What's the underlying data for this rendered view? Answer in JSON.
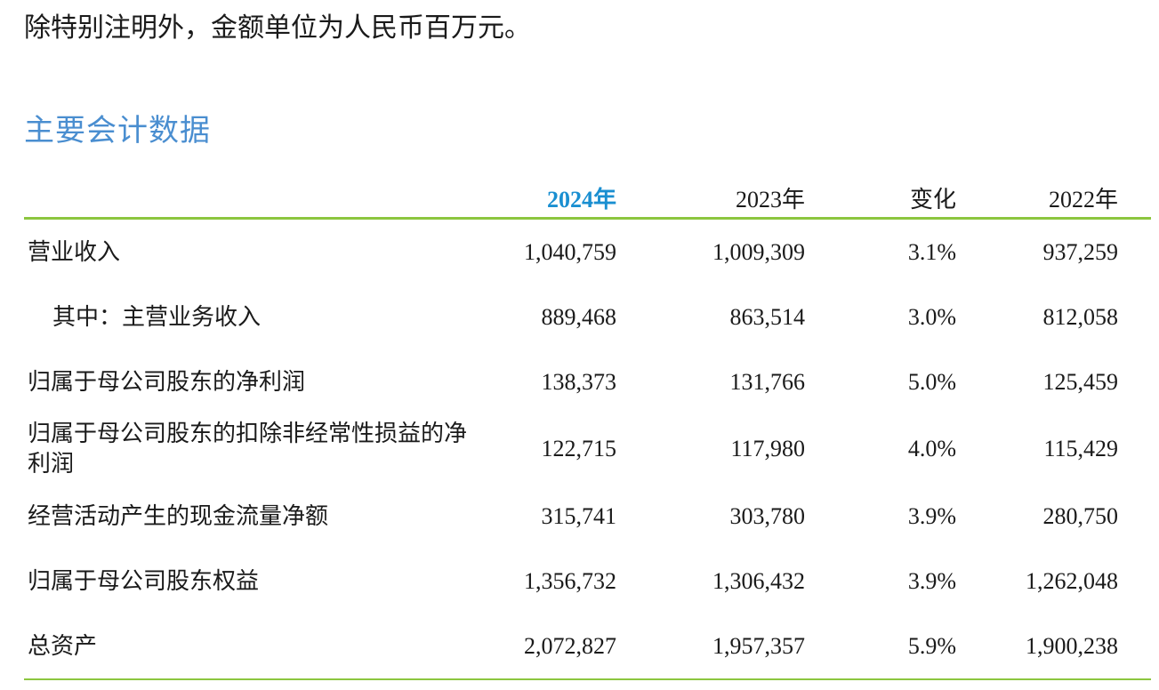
{
  "note": "除特别注明外，金额单位为人民币百万元。",
  "section_title": "主要会计数据",
  "table": {
    "headers": [
      "",
      "2024年",
      "2023年",
      "变化",
      "2022年"
    ],
    "rows": [
      {
        "label": "营业收入",
        "y2024": "1,040,759",
        "y2023": "1,009,309",
        "change": "3.1%",
        "y2022": "937,259"
      },
      {
        "label": "其中：主营业务收入",
        "y2024": "889,468",
        "y2023": "863,514",
        "change": "3.0%",
        "y2022": "812,058"
      },
      {
        "label": "归属于母公司股东的净利润",
        "y2024": "138,373",
        "y2023": "131,766",
        "change": "5.0%",
        "y2022": "125,459"
      },
      {
        "label": "归属于母公司股东的扣除非经常性损益的净利润",
        "y2024": "122,715",
        "y2023": "117,980",
        "change": "4.0%",
        "y2022": "115,429"
      },
      {
        "label": "经营活动产生的现金流量净额",
        "y2024": "315,741",
        "y2023": "303,780",
        "change": "3.9%",
        "y2022": "280,750"
      },
      {
        "label": "归属于母公司股东权益",
        "y2024": "1,356,732",
        "y2023": "1,306,432",
        "change": "3.9%",
        "y2022": "1,262,048"
      },
      {
        "label": "总资产",
        "y2024": "2,072,827",
        "y2023": "1,957,357",
        "change": "5.9%",
        "y2022": "1,900,238"
      }
    ]
  },
  "colors": {
    "title": "#4a8ed0",
    "highlight_year": "#1a8fd1",
    "rule": "#8cc63f",
    "text": "#1a1a1a"
  }
}
